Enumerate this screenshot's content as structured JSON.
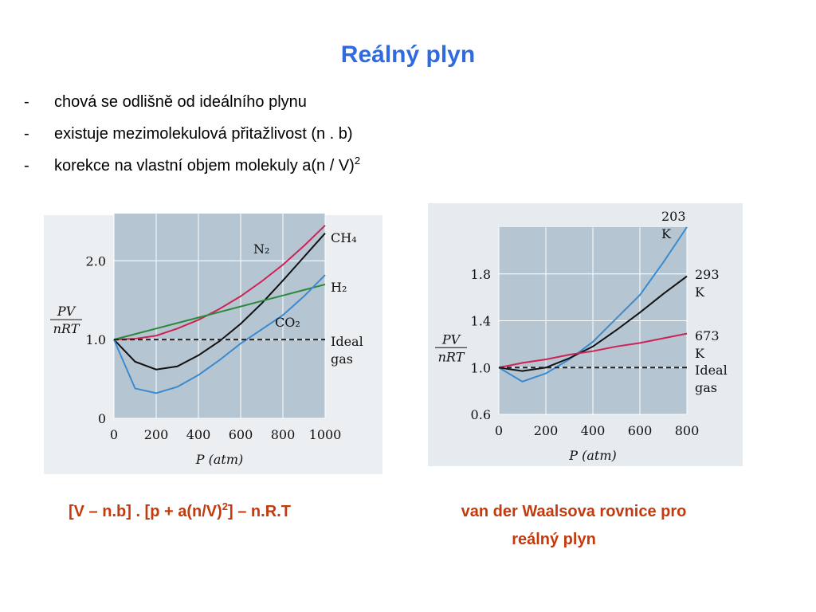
{
  "slide": {
    "title": "Reálný plyn",
    "bullets": [
      {
        "dash": "-",
        "text": "chová se odlišně od ideálního plynu"
      },
      {
        "dash": "-",
        "text": "existuje mezimolekulová přitažlivost (n . b)"
      },
      {
        "dash": "-",
        "text": "korekce na vlastní objem molekuly a(n / V)",
        "sup": "2"
      }
    ],
    "formula": [
      "[V – n.b] . [p + a(n/V)",
      "2",
      "] – n.R.T"
    ],
    "caption": [
      "van der Waalsova rovnice pro",
      "reálný plyn"
    ]
  },
  "chart_data": [
    {
      "type": "line",
      "xlabel": "P (atm)",
      "ylabel": [
        "PV",
        "nRT"
      ],
      "x": [
        0,
        100,
        200,
        300,
        400,
        500,
        600,
        700,
        800,
        900,
        1000
      ],
      "xlim": [
        0,
        1000
      ],
      "xticks": [
        0,
        200,
        400,
        600,
        800,
        1000
      ],
      "ylim": [
        0,
        2.6
      ],
      "yticks": [
        0,
        {
          "value": 1,
          "label": "1.0"
        },
        {
          "value": 2,
          "label": "2.0"
        }
      ],
      "grid": true,
      "series": [
        {
          "name": "N₂",
          "color": "#cc2255",
          "values": [
            1.0,
            1.01,
            1.05,
            1.14,
            1.25,
            1.39,
            1.55,
            1.74,
            1.95,
            2.19,
            2.45
          ]
        },
        {
          "name": "CH₄",
          "color": "#111111",
          "values": [
            1.0,
            0.72,
            0.62,
            0.66,
            0.8,
            0.98,
            1.2,
            1.46,
            1.75,
            2.05,
            2.35
          ]
        },
        {
          "name": "H₂",
          "color": "#2a8a3a",
          "values": [
            1.0,
            1.07,
            1.14,
            1.21,
            1.28,
            1.35,
            1.42,
            1.49,
            1.56,
            1.63,
            1.7
          ]
        },
        {
          "name": "CO₂",
          "color": "#3a8ad0",
          "values": [
            1.0,
            0.38,
            0.32,
            0.4,
            0.55,
            0.74,
            0.95,
            1.13,
            1.31,
            1.55,
            1.82
          ]
        },
        {
          "name": "Ideal gas",
          "color": "#222222",
          "dashed": true,
          "values": [
            1.0,
            1.0,
            1.0,
            1.0,
            1.0,
            1.0,
            1.0,
            1.0,
            1.0,
            1.0,
            1.0
          ]
        }
      ]
    },
    {
      "type": "line",
      "xlabel": "P (atm)",
      "ylabel": [
        "PV",
        "nRT"
      ],
      "x": [
        0,
        100,
        200,
        300,
        400,
        500,
        600,
        700,
        800
      ],
      "xlim": [
        0,
        800
      ],
      "xticks": [
        0,
        200,
        400,
        600,
        800
      ],
      "ylim": [
        0.6,
        2.2
      ],
      "yticks": [
        0.6,
        {
          "value": 1,
          "label": "1.0"
        },
        1.4,
        1.8
      ],
      "grid": true,
      "series": [
        {
          "name": "203 K",
          "color": "#3a8ad0",
          "values": [
            1.0,
            0.88,
            0.95,
            1.07,
            1.22,
            1.42,
            1.62,
            1.9,
            2.2
          ]
        },
        {
          "name": "293 K",
          "color": "#111111",
          "values": [
            1.0,
            0.97,
            1.0,
            1.08,
            1.18,
            1.32,
            1.47,
            1.63,
            1.78
          ]
        },
        {
          "name": "673 K",
          "color": "#cc2255",
          "values": [
            1.0,
            1.04,
            1.07,
            1.11,
            1.14,
            1.18,
            1.21,
            1.25,
            1.29
          ]
        },
        {
          "name": "Ideal gas",
          "color": "#222222",
          "dashed": true,
          "values": [
            1.0,
            1.0,
            1.0,
            1.0,
            1.0,
            1.0,
            1.0,
            1.0,
            1.0
          ]
        }
      ]
    }
  ]
}
